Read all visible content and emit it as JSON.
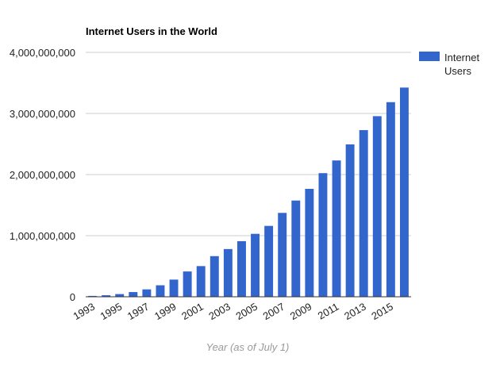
{
  "chart_data": {
    "type": "bar",
    "title": "Internet Users in the World",
    "xlabel": "Year (as of July 1)",
    "ylabel": "",
    "ylim": [
      0,
      4000000000
    ],
    "yticks": [
      0,
      1000000000,
      2000000000,
      3000000000,
      4000000000
    ],
    "ytick_labels": [
      "0",
      "1,000,000,000",
      "2,000,000,000",
      "3,000,000,000",
      "4,000,000,000"
    ],
    "grid": true,
    "legend_position": "right",
    "categories": [
      "1993",
      "1994",
      "1995",
      "1996",
      "1997",
      "1998",
      "1999",
      "2000",
      "2001",
      "2002",
      "2003",
      "2004",
      "2005",
      "2006",
      "2007",
      "2008",
      "2009",
      "2010",
      "2011",
      "2012",
      "2013",
      "2014",
      "2015",
      "2016"
    ],
    "xtick_labels": [
      "1993",
      "1995",
      "1997",
      "1999",
      "2001",
      "2003",
      "2005",
      "2007",
      "2009",
      "2011",
      "2013",
      "2015"
    ],
    "series": [
      {
        "name": "Internet Users",
        "color": "#3366cc",
        "values": [
          14000000,
          25000000,
          44000000,
          77000000,
          121000000,
          188000000,
          281000000,
          414000000,
          502000000,
          665000000,
          781000000,
          910000000,
          1030000000,
          1160000000,
          1373000000,
          1575000000,
          1766000000,
          2023000000,
          2231000000,
          2494000000,
          2728000000,
          2956000000,
          3185000000,
          3424000000
        ]
      }
    ]
  }
}
